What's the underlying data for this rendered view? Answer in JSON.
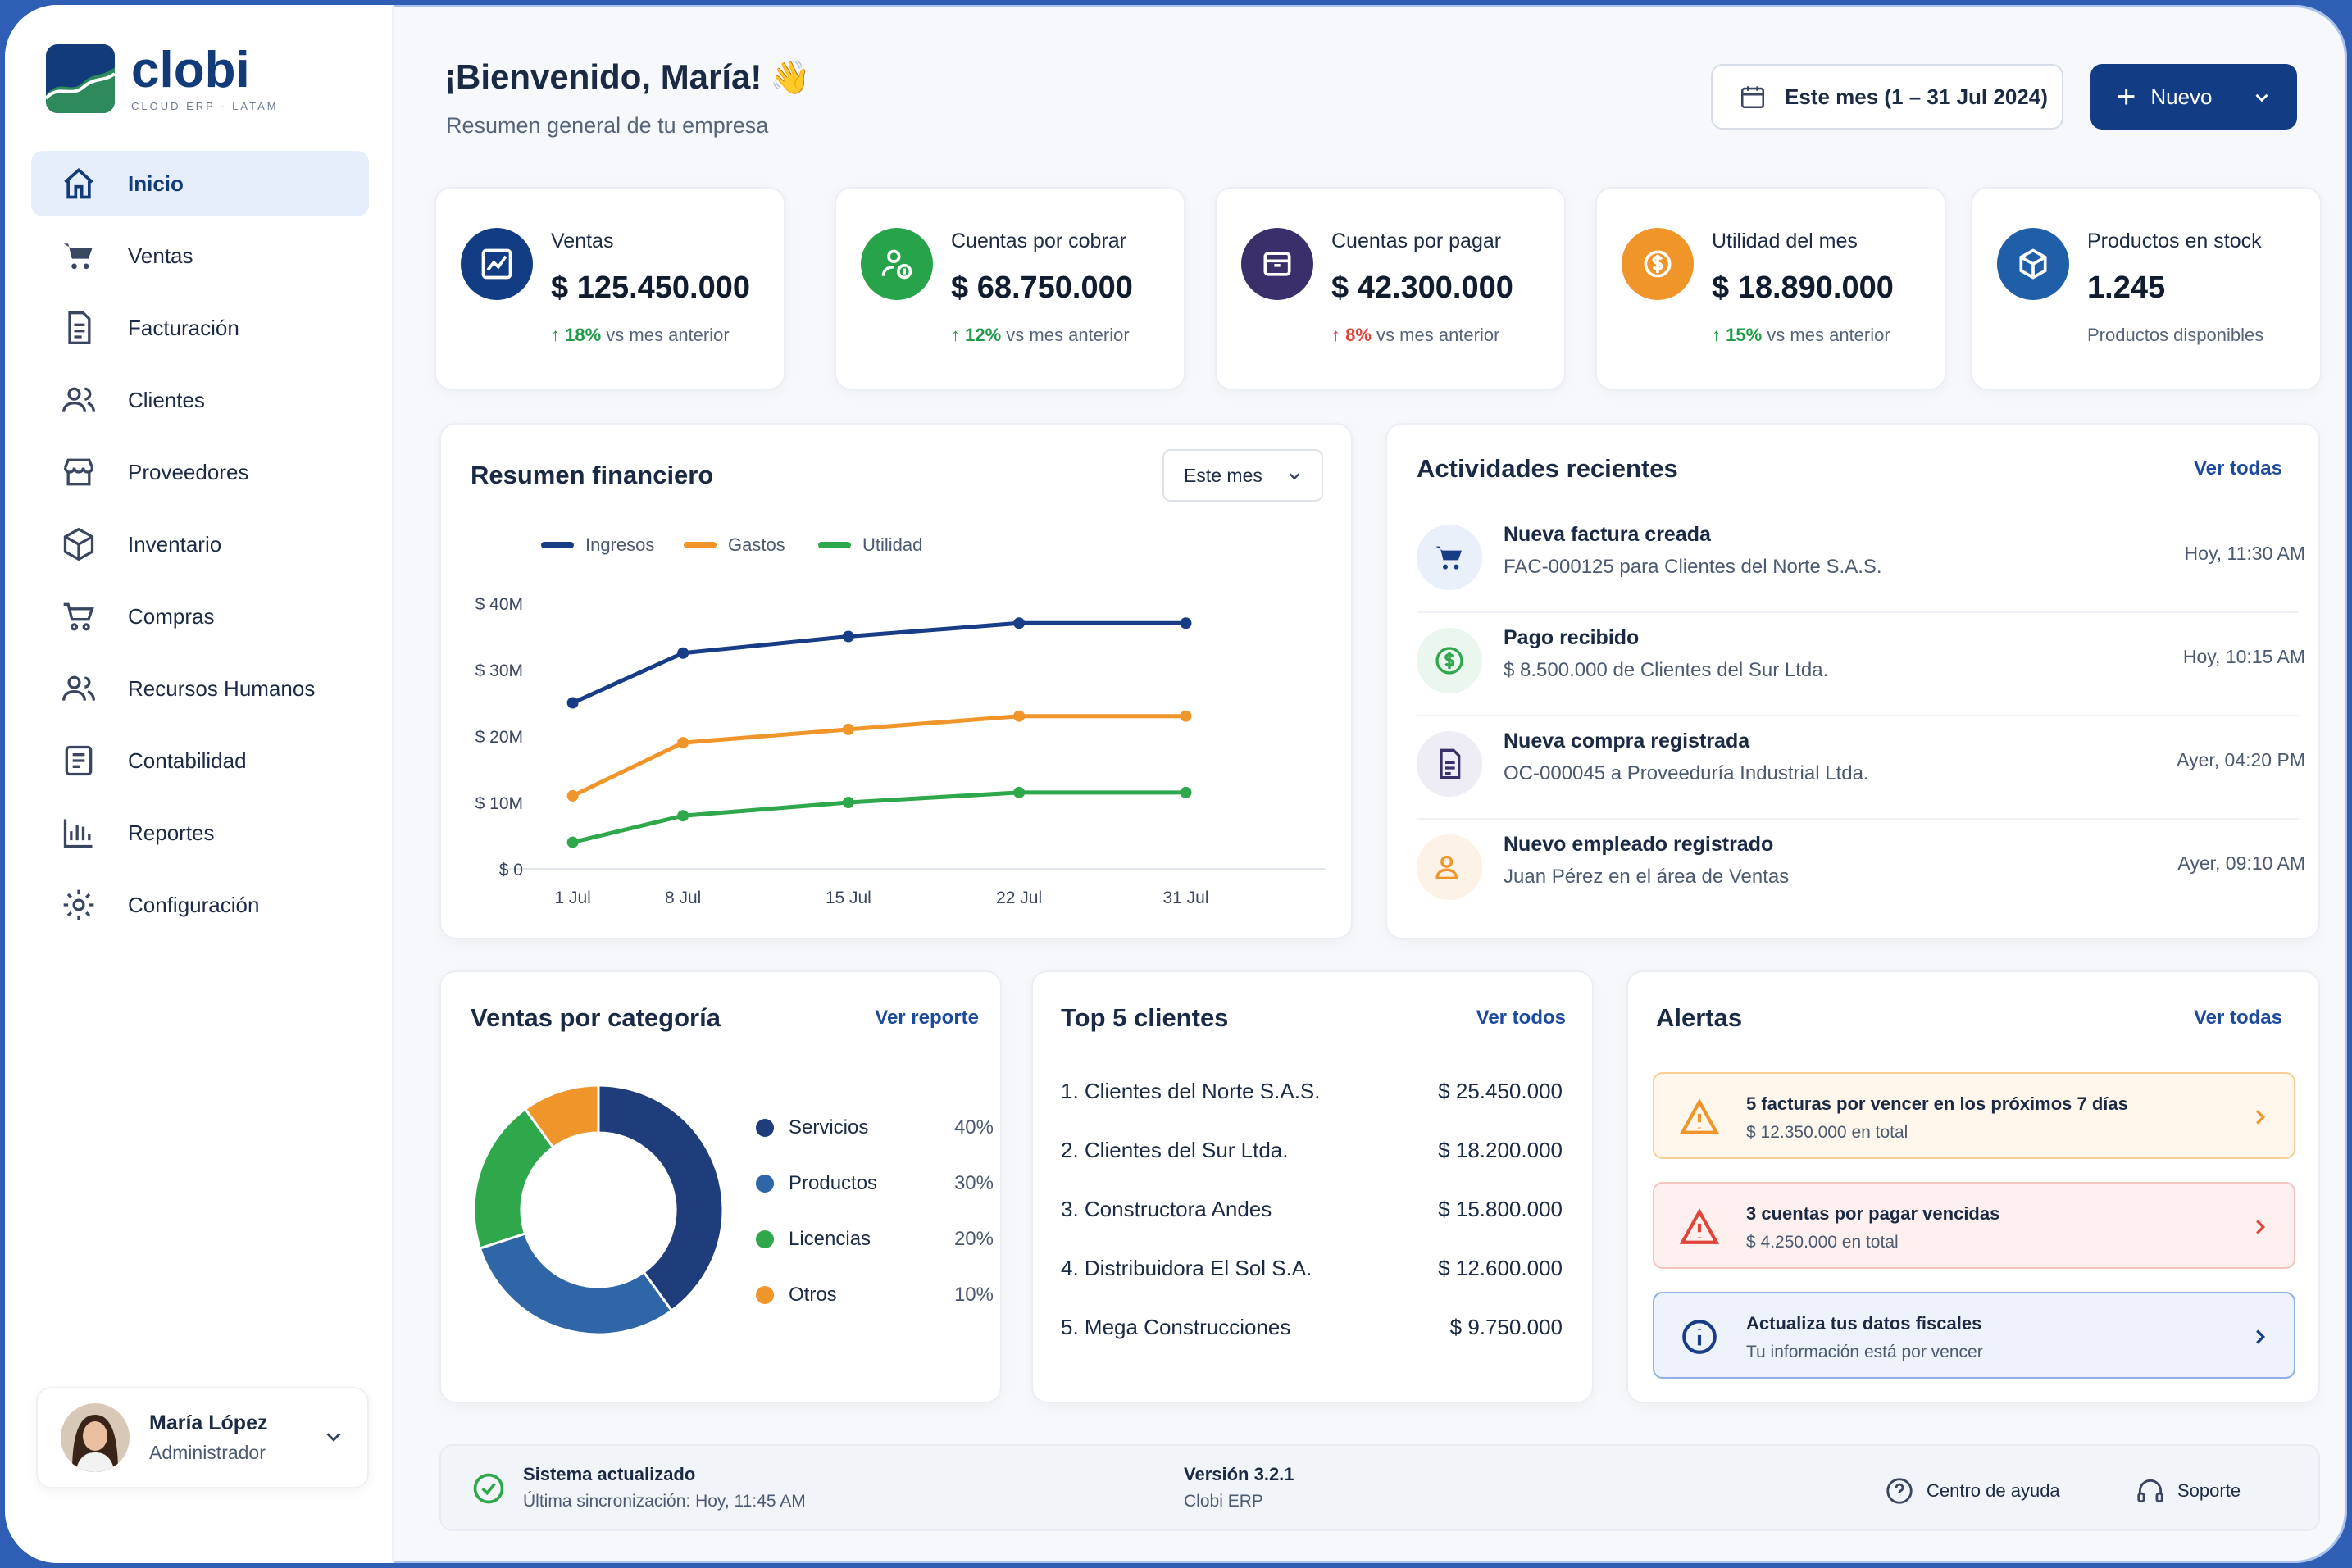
{
  "app": {
    "name": "clobi",
    "tagline": "CLOUD ERP · LATAM"
  },
  "sidebar": {
    "items": [
      {
        "label": "Inicio",
        "icon": "home-icon",
        "active": true
      },
      {
        "label": "Ventas",
        "icon": "cart-icon"
      },
      {
        "label": "Facturación",
        "icon": "invoice-icon"
      },
      {
        "label": "Clientes",
        "icon": "users-icon"
      },
      {
        "label": "Proveedores",
        "icon": "store-icon"
      },
      {
        "label": "Inventario",
        "icon": "box-icon"
      },
      {
        "label": "Compras",
        "icon": "cart-outline-icon"
      },
      {
        "label": "Recursos Humanos",
        "icon": "team-icon"
      },
      {
        "label": "Contabilidad",
        "icon": "ledger-icon"
      },
      {
        "label": "Reportes",
        "icon": "bar-chart-icon"
      },
      {
        "label": "Configuración",
        "icon": "gear-icon"
      }
    ],
    "user": {
      "name": "María López",
      "role": "Administrador"
    }
  },
  "header": {
    "greeting": "¡Bienvenido, María!",
    "wave": "👋",
    "subtitle": "Resumen general de tu empresa",
    "date_range": "Este mes (1 – 31 Jul 2024)",
    "new_button": "Nuevo"
  },
  "kpis": [
    {
      "label": "Ventas",
      "value": "$ 125.450.000",
      "delta": "18%",
      "delta_text": "vs mes anterior",
      "trend": "up",
      "color": "#123d85",
      "icon": "trend-chart-icon"
    },
    {
      "label": "Cuentas por cobrar",
      "value": "$ 68.750.000",
      "delta": "12%",
      "delta_text": "vs mes anterior",
      "trend": "up",
      "color": "#27a34a",
      "icon": "user-money-icon"
    },
    {
      "label": "Cuentas por pagar",
      "value": "$ 42.300.000",
      "delta": "8%",
      "delta_text": "vs mes anterior",
      "trend": "down",
      "color": "#3b2f6b",
      "icon": "wallet-icon"
    },
    {
      "label": "Utilidad del mes",
      "value": "$ 18.890.000",
      "delta": "15%",
      "delta_text": "vs mes anterior",
      "trend": "up",
      "color": "#f0952a",
      "icon": "dollar-coin-icon"
    },
    {
      "label": "Productos en stock",
      "value": "1.245",
      "delta": "",
      "delta_text": "Productos disponibles",
      "trend": "none",
      "color": "#1f5fa8",
      "icon": "cube-icon"
    }
  ],
  "financial": {
    "title": "Resumen financiero",
    "period": "Este mes"
  },
  "chart_data": {
    "type": "line",
    "x": [
      "1 Jul",
      "8 Jul",
      "15 Jul",
      "22 Jul",
      "31 Jul"
    ],
    "series": [
      {
        "name": "Ingresos",
        "color": "#163d86",
        "values": [
          25,
          32.5,
          35,
          37,
          37
        ]
      },
      {
        "name": "Gastos",
        "color": "#f0952a",
        "values": [
          11,
          19,
          21,
          23,
          23
        ]
      },
      {
        "name": "Utilidad",
        "color": "#2ea84a",
        "values": [
          4,
          8,
          10,
          11.5,
          11.5
        ]
      }
    ],
    "yticks": [
      "$ 0",
      "$ 10M",
      "$ 20M",
      "$ 30M",
      "$ 40M"
    ],
    "ylim": [
      0,
      40
    ],
    "grid": false,
    "legend": "top-left"
  },
  "activities": {
    "title": "Actividades recientes",
    "link": "Ver todas",
    "items": [
      {
        "title": "Nueva factura creada",
        "sub": "FAC-000125 para Clientes del Norte S.A.S.",
        "time": "Hoy, 11:30 AM",
        "icon": "cart-icon",
        "color": "#163d86",
        "bg": "#eaf0fa"
      },
      {
        "title": "Pago recibido",
        "sub": "$ 8.500.000 de Clientes del Sur Ltda.",
        "time": "Hoy, 10:15 AM",
        "icon": "dollar-circle-icon",
        "color": "#2ea84a",
        "bg": "#eaf6ee"
      },
      {
        "title": "Nueva compra registrada",
        "sub": "OC-000045 a Proveeduría Industrial Ltda.",
        "time": "Ayer, 04:20 PM",
        "icon": "document-icon",
        "color": "#3b2f6b",
        "bg": "#eeedf6"
      },
      {
        "title": "Nuevo empleado registrado",
        "sub": "Juan Pérez en el área de Ventas",
        "time": "Ayer, 09:10 AM",
        "icon": "user-add-icon",
        "color": "#f0952a",
        "bg": "#fdf2e6"
      }
    ]
  },
  "categories": {
    "title": "Ventas por categoría",
    "link": "Ver reporte",
    "items": [
      {
        "name": "Servicios",
        "pct": "40%",
        "value": 40,
        "color": "#1f3d7a"
      },
      {
        "name": "Productos",
        "pct": "30%",
        "value": 30,
        "color": "#2e66a8"
      },
      {
        "name": "Licencias",
        "pct": "20%",
        "value": 20,
        "color": "#2ea84a"
      },
      {
        "name": "Otros",
        "pct": "10%",
        "value": 10,
        "color": "#f0952a"
      }
    ]
  },
  "top_clients": {
    "title": "Top 5 clientes",
    "link": "Ver todos",
    "items": [
      {
        "name": "1. Clientes del Norte S.A.S.",
        "amount": "$ 25.450.000"
      },
      {
        "name": "2. Clientes del Sur Ltda.",
        "amount": "$ 18.200.000"
      },
      {
        "name": "3. Constructora Andes",
        "amount": "$ 15.800.000"
      },
      {
        "name": "4. Distribuidora El Sol S.A.",
        "amount": "$ 12.600.000"
      },
      {
        "name": "5. Mega Construcciones",
        "amount": "$ 9.750.000"
      }
    ]
  },
  "alerts": {
    "title": "Alertas",
    "link": "Ver todas",
    "items": [
      {
        "title": "5 facturas por vencer en los próximos 7 días",
        "sub": "$ 12.350.000 en total",
        "kind": "warning",
        "icon": "warning-icon",
        "color": "#f0952a",
        "bg": "#fff7ec",
        "border": "#f6cf98"
      },
      {
        "title": "3 cuentas por pagar vencidas",
        "sub": "$ 4.250.000 en total",
        "kind": "danger",
        "icon": "danger-icon",
        "color": "#e0453b",
        "bg": "#fdf0ef",
        "border": "#f3c3c0"
      },
      {
        "title": "Actualiza tus datos fiscales",
        "sub": "Tu información está por vencer",
        "kind": "info",
        "icon": "info-icon",
        "color": "#163d86",
        "bg": "#eef3fb",
        "border": "#8fb0e0"
      }
    ]
  },
  "footer": {
    "status_title": "Sistema actualizado",
    "status_sub": "Última sincronización: Hoy, 11:45 AM",
    "version_title": "Versión 3.2.1",
    "version_sub": "Clobi ERP",
    "help": "Centro de ayuda",
    "support": "Soporte"
  }
}
